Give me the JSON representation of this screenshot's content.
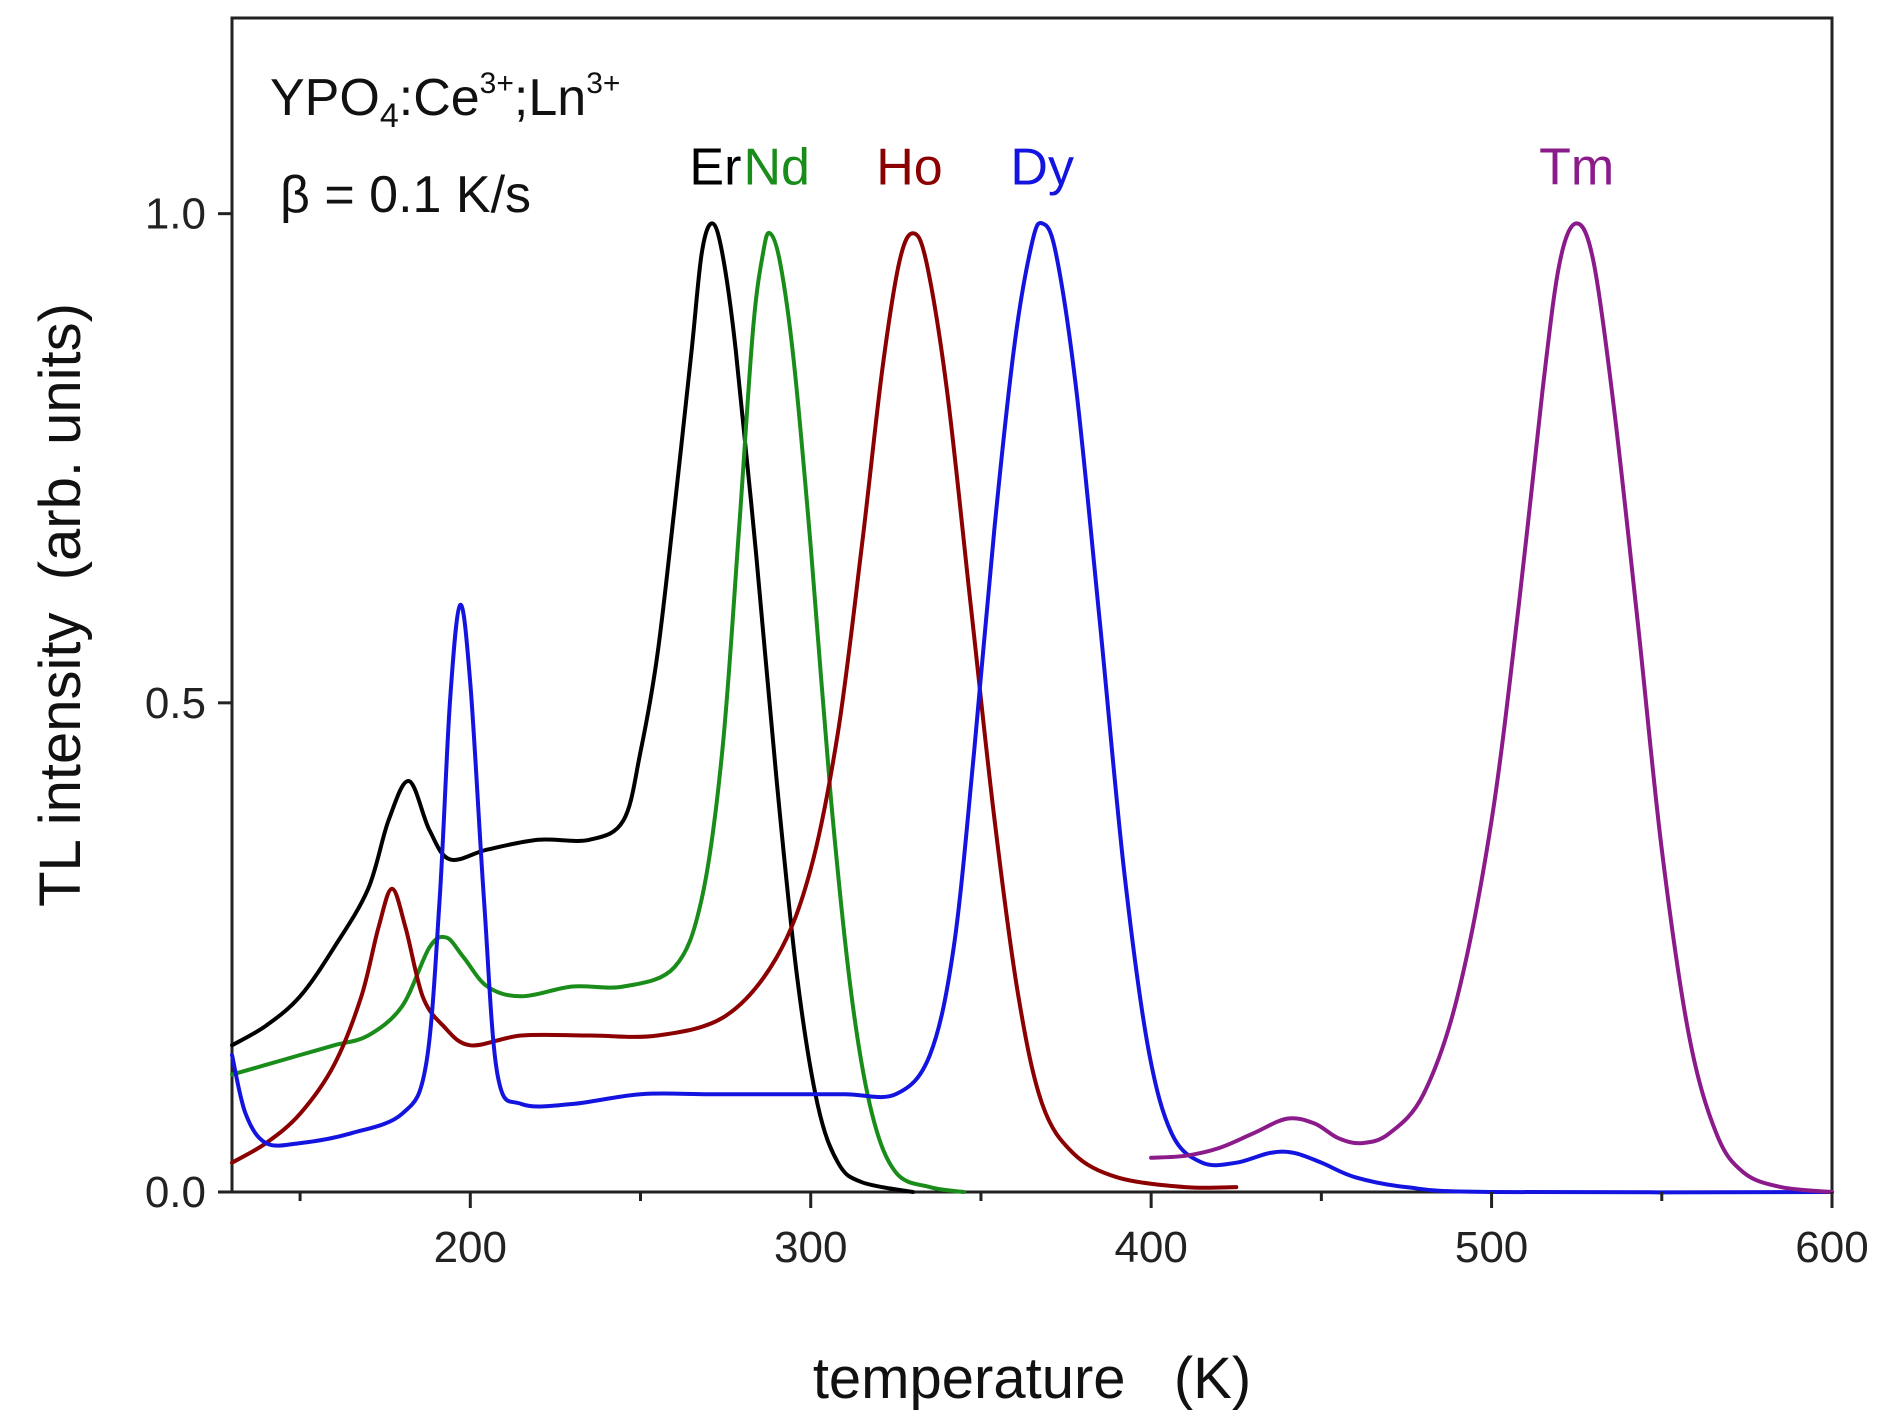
{
  "chart_data": {
    "type": "line",
    "xlabel": "temperature   (K)",
    "ylabel": "TL intensity  (arb. units)",
    "xlim": [
      130,
      600
    ],
    "ylim": [
      0,
      1.2
    ],
    "x_ticks": [
      200,
      300,
      400,
      500,
      600
    ],
    "x_minor_ticks": [
      150,
      250,
      350,
      450,
      550
    ],
    "y_ticks": [
      {
        "value": 0.0,
        "label": "0.0"
      },
      {
        "value": 0.5,
        "label": "0.5"
      },
      {
        "value": 1.0,
        "label": "1.0"
      }
    ],
    "annotation_formula": {
      "base": "YPO",
      "sub": "4",
      "mid1": ":Ce",
      "sup1": "3+",
      "mid2": ";Ln",
      "sup2": "3+"
    },
    "annotation_rate": "β = 0.1 K/s",
    "series": [
      {
        "name": "Er",
        "color": "#000000",
        "label_at": [
          272,
          1.03
        ],
        "points": [
          [
            130,
            0.15
          ],
          [
            140,
            0.17
          ],
          [
            150,
            0.2
          ],
          [
            160,
            0.25
          ],
          [
            170,
            0.31
          ],
          [
            176,
            0.38
          ],
          [
            182,
            0.42
          ],
          [
            188,
            0.37
          ],
          [
            194,
            0.34
          ],
          [
            205,
            0.35
          ],
          [
            220,
            0.36
          ],
          [
            235,
            0.36
          ],
          [
            245,
            0.38
          ],
          [
            250,
            0.45
          ],
          [
            255,
            0.55
          ],
          [
            260,
            0.7
          ],
          [
            265,
            0.86
          ],
          [
            268,
            0.96
          ],
          [
            271,
            0.99
          ],
          [
            274,
            0.96
          ],
          [
            278,
            0.86
          ],
          [
            284,
            0.65
          ],
          [
            290,
            0.42
          ],
          [
            296,
            0.22
          ],
          [
            302,
            0.09
          ],
          [
            308,
            0.03
          ],
          [
            315,
            0.01
          ],
          [
            330,
            0
          ]
        ]
      },
      {
        "name": "Nd",
        "color": "#1a8c1a",
        "label_at": [
          290,
          1.03
        ],
        "points": [
          [
            130,
            0.12
          ],
          [
            140,
            0.13
          ],
          [
            150,
            0.14
          ],
          [
            160,
            0.15
          ],
          [
            170,
            0.16
          ],
          [
            180,
            0.19
          ],
          [
            188,
            0.25
          ],
          [
            193,
            0.26
          ],
          [
            198,
            0.24
          ],
          [
            205,
            0.21
          ],
          [
            215,
            0.2
          ],
          [
            230,
            0.21
          ],
          [
            245,
            0.21
          ],
          [
            260,
            0.23
          ],
          [
            268,
            0.3
          ],
          [
            274,
            0.45
          ],
          [
            279,
            0.68
          ],
          [
            283,
            0.88
          ],
          [
            286,
            0.96
          ],
          [
            288,
            0.98
          ],
          [
            291,
            0.95
          ],
          [
            295,
            0.85
          ],
          [
            300,
            0.66
          ],
          [
            306,
            0.4
          ],
          [
            312,
            0.2
          ],
          [
            318,
            0.08
          ],
          [
            325,
            0.02
          ],
          [
            335,
            0.005
          ],
          [
            345,
            0
          ]
        ]
      },
      {
        "name": "Ho",
        "color": "#8b0000",
        "label_at": [
          329,
          1.03
        ],
        "points": [
          [
            130,
            0.03
          ],
          [
            140,
            0.05
          ],
          [
            150,
            0.08
          ],
          [
            160,
            0.13
          ],
          [
            168,
            0.2
          ],
          [
            173,
            0.27
          ],
          [
            177,
            0.31
          ],
          [
            181,
            0.27
          ],
          [
            186,
            0.2
          ],
          [
            192,
            0.17
          ],
          [
            200,
            0.15
          ],
          [
            215,
            0.16
          ],
          [
            235,
            0.16
          ],
          [
            255,
            0.16
          ],
          [
            275,
            0.18
          ],
          [
            290,
            0.24
          ],
          [
            300,
            0.33
          ],
          [
            308,
            0.47
          ],
          [
            315,
            0.66
          ],
          [
            321,
            0.84
          ],
          [
            326,
            0.95
          ],
          [
            330,
            0.98
          ],
          [
            334,
            0.95
          ],
          [
            340,
            0.82
          ],
          [
            347,
            0.6
          ],
          [
            354,
            0.38
          ],
          [
            361,
            0.2
          ],
          [
            368,
            0.09
          ],
          [
            377,
            0.04
          ],
          [
            390,
            0.015
          ],
          [
            410,
            0.005
          ],
          [
            425,
            0.005
          ]
        ]
      },
      {
        "name": "Dy",
        "color": "#1414e0",
        "label_at": [
          368,
          1.03
        ],
        "points": [
          [
            130,
            0.14
          ],
          [
            134,
            0.08
          ],
          [
            140,
            0.05
          ],
          [
            150,
            0.05
          ],
          [
            165,
            0.06
          ],
          [
            180,
            0.08
          ],
          [
            187,
            0.13
          ],
          [
            191,
            0.3
          ],
          [
            194,
            0.5
          ],
          [
            197,
            0.6
          ],
          [
            200,
            0.52
          ],
          [
            204,
            0.3
          ],
          [
            208,
            0.12
          ],
          [
            215,
            0.09
          ],
          [
            230,
            0.09
          ],
          [
            250,
            0.1
          ],
          [
            270,
            0.1
          ],
          [
            290,
            0.1
          ],
          [
            310,
            0.1
          ],
          [
            325,
            0.1
          ],
          [
            335,
            0.14
          ],
          [
            342,
            0.25
          ],
          [
            348,
            0.45
          ],
          [
            354,
            0.68
          ],
          [
            360,
            0.87
          ],
          [
            365,
            0.97
          ],
          [
            368,
            0.99
          ],
          [
            372,
            0.96
          ],
          [
            378,
            0.82
          ],
          [
            385,
            0.58
          ],
          [
            392,
            0.33
          ],
          [
            399,
            0.15
          ],
          [
            406,
            0.06
          ],
          [
            415,
            0.03
          ],
          [
            425,
            0.03
          ],
          [
            435,
            0.04
          ],
          [
            442,
            0.04
          ],
          [
            450,
            0.03
          ],
          [
            460,
            0.015
          ],
          [
            475,
            0.005
          ],
          [
            500,
            0
          ],
          [
            600,
            0
          ]
        ]
      },
      {
        "name": "Tm",
        "color": "#8b1a8b",
        "label_at": [
          525,
          1.03
        ],
        "points": [
          [
            400,
            0.035
          ],
          [
            410,
            0.037
          ],
          [
            420,
            0.045
          ],
          [
            430,
            0.06
          ],
          [
            440,
            0.075
          ],
          [
            448,
            0.07
          ],
          [
            455,
            0.055
          ],
          [
            462,
            0.05
          ],
          [
            470,
            0.06
          ],
          [
            480,
            0.1
          ],
          [
            490,
            0.2
          ],
          [
            500,
            0.38
          ],
          [
            508,
            0.6
          ],
          [
            515,
            0.82
          ],
          [
            520,
            0.95
          ],
          [
            525,
            0.99
          ],
          [
            530,
            0.95
          ],
          [
            536,
            0.8
          ],
          [
            543,
            0.58
          ],
          [
            550,
            0.35
          ],
          [
            558,
            0.16
          ],
          [
            566,
            0.06
          ],
          [
            574,
            0.02
          ],
          [
            585,
            0.005
          ],
          [
            600,
            0
          ]
        ]
      }
    ]
  }
}
